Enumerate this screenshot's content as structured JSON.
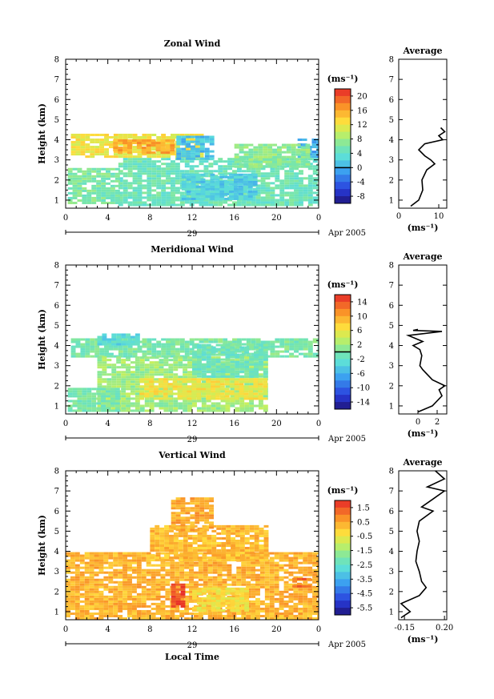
{
  "chart_data": [
    {
      "type": "heatmap",
      "title": "Zonal Wind",
      "ylabel": "Height (km)",
      "xlabel": "",
      "x_ticks": [
        "0",
        "4",
        "8",
        "12",
        "16",
        "20",
        "0"
      ],
      "y_ticks": [
        "1",
        "2",
        "3",
        "4",
        "5",
        "6",
        "7",
        "8"
      ],
      "date_tick": "29",
      "date_label": "Apr 2005",
      "xlim": [
        0,
        24
      ],
      "ylim": [
        0.6,
        8
      ],
      "colorbar": {
        "unit": "(ms⁻¹)",
        "ticks": [
          "20",
          "16",
          "12",
          "8",
          "4",
          "0",
          "-4",
          "-8"
        ],
        "range": [
          -10,
          22
        ],
        "zero_line": 0
      },
      "field_blobs": [
        {
          "t0": 0.5,
          "t1": 13,
          "h0": 3.1,
          "h1": 4.2,
          "v": 12
        },
        {
          "t0": 4.5,
          "t1": 10,
          "h0": 3.3,
          "h1": 4.0,
          "v": 16
        },
        {
          "t0": 5,
          "t1": 24,
          "h0": 0.7,
          "h1": 3.0,
          "v": 5
        },
        {
          "t0": 11,
          "t1": 18,
          "h0": 1.0,
          "h1": 2.3,
          "v": 2
        },
        {
          "t0": 10.5,
          "t1": 14,
          "h0": 3.0,
          "h1": 4.2,
          "v": 1
        },
        {
          "t0": 22,
          "t1": 24,
          "h0": 3.1,
          "h1": 4.0,
          "v": 0
        },
        {
          "t0": 0.2,
          "t1": 5,
          "h0": 0.8,
          "h1": 2.6,
          "v": 6
        },
        {
          "t0": 16,
          "t1": 23,
          "h0": 2.6,
          "h1": 3.8,
          "v": 7
        }
      ],
      "average_panel": {
        "title": "Average",
        "xlabel": "(ms⁻¹)",
        "x_ticks": [
          "0",
          "10"
        ],
        "xlim": [
          0,
          12
        ],
        "height": [
          0.7,
          1.0,
          1.5,
          2.0,
          2.5,
          2.8,
          3.0,
          3.2,
          3.5,
          3.8,
          4.0,
          4.2,
          4.4,
          4.6
        ],
        "value": [
          3.0,
          5.0,
          6.0,
          5.8,
          7.0,
          9.0,
          8.0,
          6.5,
          5.0,
          6.5,
          11.0,
          10.0,
          11.5,
          10.5
        ]
      }
    },
    {
      "type": "heatmap",
      "title": "Meridional Wind",
      "ylabel": "Height (km)",
      "xlabel": "",
      "x_ticks": [
        "0",
        "4",
        "8",
        "12",
        "16",
        "20",
        "0"
      ],
      "y_ticks": [
        "1",
        "2",
        "3",
        "4",
        "5",
        "6",
        "7",
        "8"
      ],
      "date_tick": "29",
      "date_label": "Apr 2005",
      "xlim": [
        0,
        24
      ],
      "ylim": [
        0.6,
        8
      ],
      "colorbar": {
        "unit": "(ms⁻¹)",
        "ticks": [
          "14",
          "10",
          "6",
          "2",
          "-2",
          "-6",
          "-10",
          "-14"
        ],
        "range": [
          -16,
          16
        ],
        "zero_line": 0
      },
      "field_blobs": [
        {
          "t0": 0.5,
          "t1": 24,
          "h0": 3.4,
          "h1": 4.3,
          "v": 0
        },
        {
          "t0": 3,
          "t1": 19,
          "h0": 0.7,
          "h1": 3.4,
          "v": 2
        },
        {
          "t0": 7,
          "t1": 19,
          "h0": 1.3,
          "h1": 2.3,
          "v": 6
        },
        {
          "t0": 0.2,
          "t1": 5,
          "h0": 0.7,
          "h1": 1.8,
          "v": 0
        },
        {
          "t0": 3,
          "t1": 7,
          "h0": 4.0,
          "h1": 4.5,
          "v": -3
        },
        {
          "t0": 12,
          "t1": 19,
          "h0": 2.4,
          "h1": 4.0,
          "v": -1
        }
      ],
      "average_panel": {
        "title": "Average",
        "xlabel": "(ms⁻¹)",
        "x_ticks": [
          "0",
          "2"
        ],
        "xlim": [
          -2,
          3
        ],
        "height": [
          0.7,
          1.0,
          1.5,
          1.8,
          2.0,
          2.3,
          2.8,
          3.0,
          3.5,
          3.8,
          4.0,
          4.2,
          4.5,
          4.7,
          4.75,
          4.8
        ],
        "value": [
          0.0,
          1.5,
          2.5,
          2.2,
          2.8,
          1.5,
          0.5,
          0.2,
          0.4,
          0.2,
          -0.5,
          0.5,
          -1.0,
          2.5,
          -0.5,
          0.0
        ]
      }
    },
    {
      "type": "heatmap",
      "title": "Vertical Wind",
      "ylabel": "Height (km)",
      "xlabel": "Local Time",
      "x_ticks": [
        "0",
        "4",
        "8",
        "12",
        "16",
        "20",
        "0"
      ],
      "y_ticks": [
        "1",
        "2",
        "3",
        "4",
        "5",
        "6",
        "7",
        "8"
      ],
      "date_tick": "29",
      "date_label": "Apr 2005",
      "xlim": [
        0,
        24
      ],
      "ylim": [
        0.6,
        8
      ],
      "colorbar": {
        "unit": "(ms⁻¹)",
        "ticks": [
          "1.5",
          "0.5",
          "-0.5",
          "-1.5",
          "-2.5",
          "-3.5",
          "-4.5",
          "-5.5"
        ],
        "range": [
          -6,
          2
        ],
        "zero_line": null
      },
      "field_blobs": [
        {
          "t0": 0,
          "t1": 24,
          "h0": 0.6,
          "h1": 3.9,
          "v": 0.3
        },
        {
          "t0": 8,
          "t1": 19,
          "h0": 3.5,
          "h1": 5.3,
          "v": 0.2
        },
        {
          "t0": 10,
          "t1": 14,
          "h0": 5.0,
          "h1": 6.6,
          "v": 0.4
        },
        {
          "t0": 10,
          "t1": 11,
          "h0": 1.2,
          "h1": 2.3,
          "v": 1.6
        },
        {
          "t0": 12,
          "t1": 17,
          "h0": 1.0,
          "h1": 2.2,
          "v": -0.4
        },
        {
          "t0": 21.5,
          "t1": 23,
          "h0": 2.2,
          "h1": 2.6,
          "v": 1.2
        }
      ],
      "average_panel": {
        "title": "Average",
        "xlabel": "(ms⁻¹)",
        "x_ticks": [
          "-0.15",
          "0.20"
        ],
        "xlim": [
          -0.2,
          0.22
        ],
        "height": [
          0.7,
          1.0,
          1.4,
          1.8,
          2.2,
          2.5,
          3.0,
          3.5,
          4.0,
          4.5,
          5.0,
          5.5,
          6.0,
          6.2,
          6.6,
          7.0,
          7.2,
          7.6,
          8.0
        ],
        "value": [
          -0.18,
          -0.1,
          -0.18,
          -0.02,
          0.04,
          0.0,
          -0.02,
          -0.05,
          -0.04,
          -0.02,
          -0.04,
          -0.02,
          0.1,
          0.0,
          0.1,
          0.2,
          0.05,
          0.2,
          0.12
        ]
      }
    }
  ]
}
